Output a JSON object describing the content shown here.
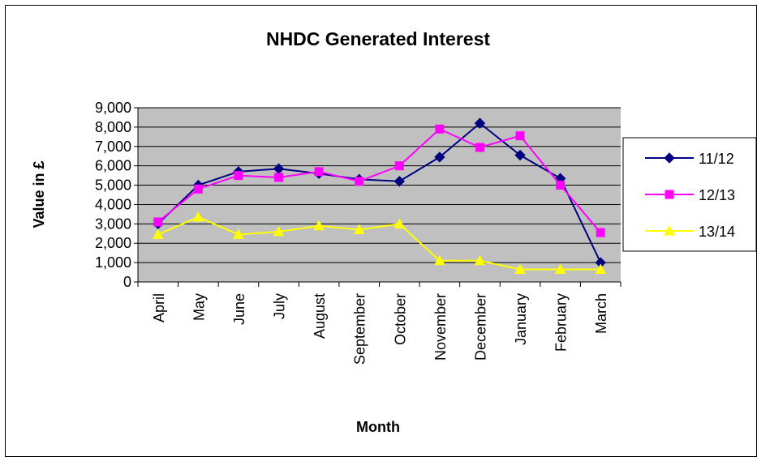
{
  "chart_data": {
    "type": "line",
    "title": "NHDC Generated Interest",
    "x_label": "Month",
    "y_label": "Value in £",
    "categories": [
      "April",
      "May",
      "June",
      "July",
      "August",
      "September",
      "October",
      "November",
      "December",
      "January",
      "February",
      "March"
    ],
    "series": [
      {
        "name": "11/12",
        "color": "#000080",
        "marker": "diamond",
        "values": [
          3000,
          5000,
          5700,
          5850,
          5600,
          5300,
          5200,
          6450,
          8200,
          6550,
          5350,
          1000
        ]
      },
      {
        "name": "12/13",
        "color": "#ff00ff",
        "marker": "square",
        "values": [
          3100,
          4800,
          5500,
          5400,
          5700,
          5200,
          6000,
          7900,
          6950,
          7550,
          5000,
          2550
        ]
      },
      {
        "name": "13/14",
        "color": "#ffff00",
        "marker": "triangle",
        "values": [
          2450,
          3350,
          2450,
          2600,
          2900,
          2700,
          3000,
          1100,
          1100,
          650,
          650,
          650
        ]
      }
    ],
    "ylim": [
      0,
      9000
    ],
    "yticks": [
      0,
      {
        "value": 1000,
        "label": "1,000"
      },
      {
        "value": 2000,
        "label": "2,000"
      },
      {
        "value": 3000,
        "label": "3,000"
      },
      {
        "value": 4000,
        "label": "4,000"
      },
      {
        "value": 5000,
        "label": "5,000"
      },
      {
        "value": 6000,
        "label": "6,000"
      },
      {
        "value": 7000,
        "label": "7,000"
      },
      {
        "value": 8000,
        "label": "8,000"
      },
      {
        "value": 9000,
        "label": "9,000"
      }
    ],
    "grid": true,
    "legend": "right"
  }
}
